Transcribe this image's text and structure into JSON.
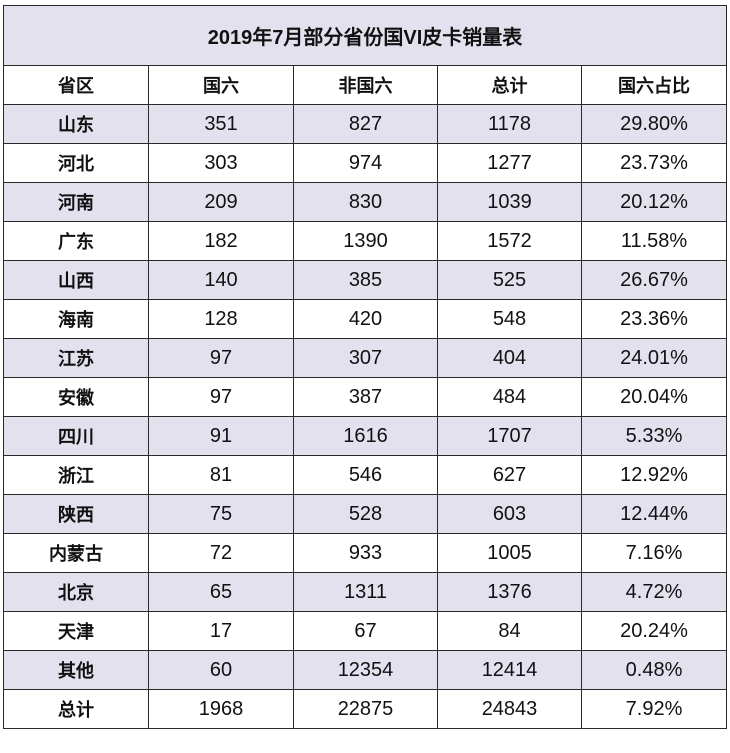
{
  "table": {
    "title": "2019年7月部分省份国VI皮卡销量表",
    "headers": [
      "省区",
      "国六",
      "非国六",
      "总计",
      "国六占比"
    ],
    "rows": [
      [
        "山东",
        "351",
        "827",
        "1178",
        "29.80%"
      ],
      [
        "河北",
        "303",
        "974",
        "1277",
        "23.73%"
      ],
      [
        "河南",
        "209",
        "830",
        "1039",
        "20.12%"
      ],
      [
        "广东",
        "182",
        "1390",
        "1572",
        "11.58%"
      ],
      [
        "山西",
        "140",
        "385",
        "525",
        "26.67%"
      ],
      [
        "海南",
        "128",
        "420",
        "548",
        "23.36%"
      ],
      [
        "江苏",
        "97",
        "307",
        "404",
        "24.01%"
      ],
      [
        "安徽",
        "97",
        "387",
        "484",
        "20.04%"
      ],
      [
        "四川",
        "91",
        "1616",
        "1707",
        "5.33%"
      ],
      [
        "浙江",
        "81",
        "546",
        "627",
        "12.92%"
      ],
      [
        "陕西",
        "75",
        "528",
        "603",
        "12.44%"
      ],
      [
        "内蒙古",
        "72",
        "933",
        "1005",
        "7.16%"
      ],
      [
        "北京",
        "65",
        "1311",
        "1376",
        "4.72%"
      ],
      [
        "天津",
        "17",
        "67",
        "84",
        "20.24%"
      ],
      [
        "其他",
        "60",
        "12354",
        "12414",
        "0.48%"
      ],
      [
        "总计",
        "1968",
        "22875",
        "24843",
        "7.92%"
      ]
    ]
  },
  "colors": {
    "stripe": "#e4e1ee",
    "border": "#2a2a2a"
  }
}
